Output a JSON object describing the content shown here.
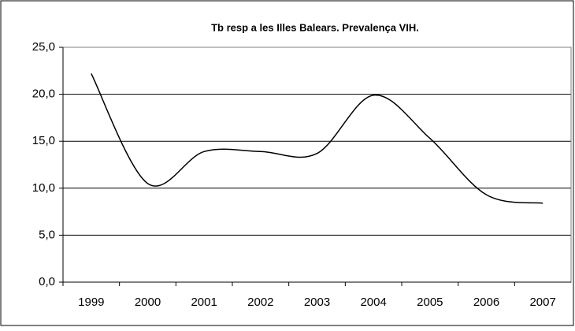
{
  "chart_data": {
    "type": "line",
    "title": "Tb resp a les Illes Balears. Prevalença VIH.",
    "categories": [
      "1999",
      "2000",
      "2001",
      "2002",
      "2003",
      "2004",
      "2005",
      "2006",
      "2007"
    ],
    "series": [
      {
        "name": "Prevalença VIH",
        "color": "#000000",
        "values": [
          22.2,
          10.5,
          13.9,
          13.9,
          13.7,
          19.9,
          15.3,
          9.3,
          8.4
        ]
      }
    ],
    "ylim": [
      0,
      25
    ],
    "yticks": [
      {
        "value": 0,
        "label": "0,0"
      },
      {
        "value": 5,
        "label": "5,0"
      },
      {
        "value": 10,
        "label": "10,0"
      },
      {
        "value": 15,
        "label": "15,0"
      },
      {
        "value": 20,
        "label": "20,0"
      },
      {
        "value": 25,
        "label": "25,0"
      }
    ],
    "grid": true,
    "smooth": true
  }
}
